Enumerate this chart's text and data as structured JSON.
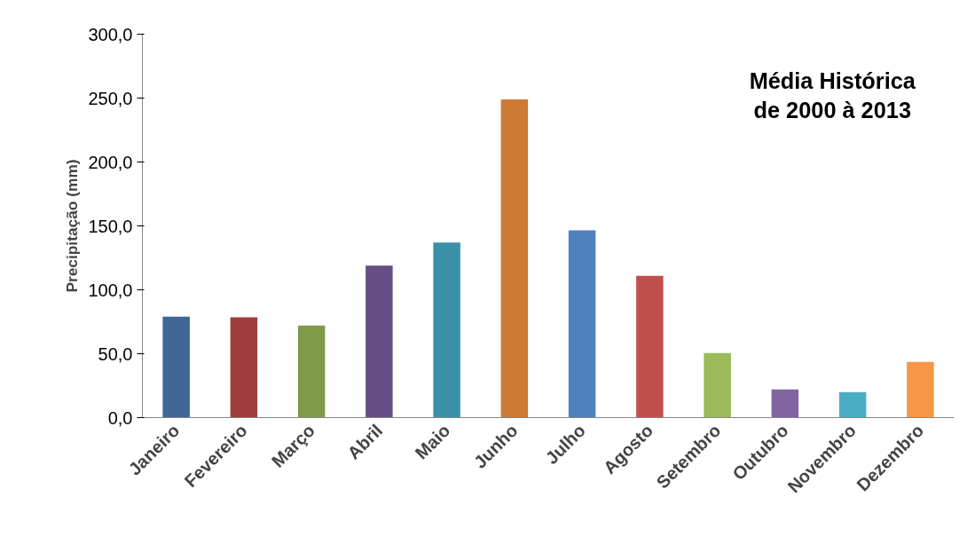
{
  "chart_data": {
    "type": "bar",
    "ylabel": "Precipitação (mm)",
    "categories": [
      "Janeiro",
      "Fevereiro",
      "Março",
      "Abril",
      "Maio",
      "Junho",
      "Julho",
      "Agosto",
      "Setembro",
      "Outubro",
      "Novembro",
      "Dezembro"
    ],
    "values": [
      79,
      78.5,
      72,
      119,
      137,
      249,
      146.5,
      111,
      50.5,
      22,
      20,
      43.5
    ],
    "colors": [
      "#3f6797",
      "#9e3d3b",
      "#7e9a48",
      "#664e86",
      "#3a91a7",
      "#cd7a36",
      "#4f81bd",
      "#c0504d",
      "#9bbb59",
      "#8064a2",
      "#4bacc6",
      "#f79646"
    ],
    "ylim": [
      0,
      300
    ],
    "yticks": [
      {
        "value": 0,
        "label": "0,0"
      },
      {
        "value": 50,
        "label": "50,0"
      },
      {
        "value": 100,
        "label": "100,0"
      },
      {
        "value": 150,
        "label": "150,0"
      },
      {
        "value": 200,
        "label": "200,0"
      },
      {
        "value": 250,
        "label": "250,0"
      },
      {
        "value": 300,
        "label": "300,0"
      }
    ],
    "annotations": [
      "Média Histórica\nde 2000 à 2013"
    ],
    "grid": false
  }
}
